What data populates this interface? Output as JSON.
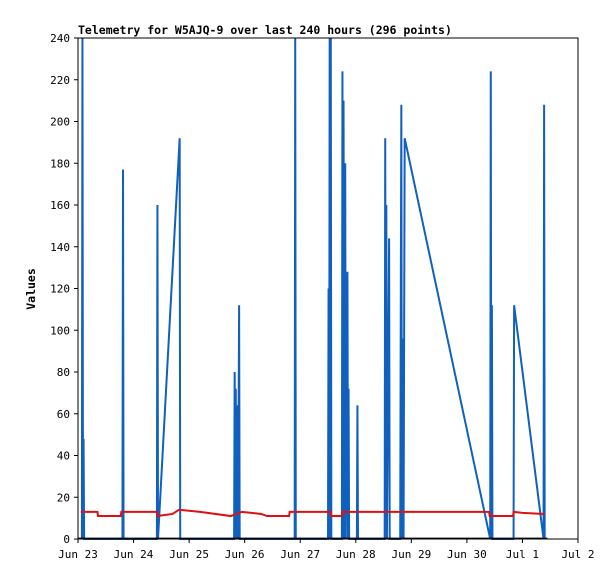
{
  "chart_data": {
    "type": "line",
    "title": "Telemetry for W5AJQ-9 over last 240 hours (296 points)",
    "xlabel": "",
    "ylabel": "Values",
    "x_ticks": [
      "Jun 23",
      "Jun 24",
      "Jun 25",
      "Jun 26",
      "Jun 27",
      "Jun 28",
      "Jun 29",
      "Jun 30",
      "Jul 1",
      "Jul 2"
    ],
    "xlim_days": [
      0,
      9
    ],
    "y_ticks": [
      0,
      20,
      40,
      60,
      80,
      100,
      120,
      140,
      160,
      180,
      200,
      220,
      240
    ],
    "ylim": [
      0,
      240
    ],
    "grid": false,
    "series": [
      {
        "color": "#1060c0",
        "points": [
          [
            0.07,
            0
          ],
          [
            0.08,
            240
          ],
          [
            0.09,
            0
          ],
          [
            0.1,
            48
          ],
          [
            0.11,
            0
          ],
          [
            0.8,
            0
          ],
          [
            0.81,
            177
          ],
          [
            0.82,
            0
          ],
          [
            1.42,
            0
          ],
          [
            1.43,
            160
          ],
          [
            1.44,
            0
          ],
          [
            1.83,
            192
          ],
          [
            1.84,
            0
          ],
          [
            2.81,
            0
          ],
          [
            2.82,
            80
          ],
          [
            2.83,
            0
          ],
          [
            2.84,
            72
          ],
          [
            2.85,
            0
          ],
          [
            2.87,
            64
          ],
          [
            2.88,
            0
          ],
          [
            2.9,
            112
          ],
          [
            2.91,
            0
          ],
          [
            3.9,
            0
          ],
          [
            3.91,
            240
          ],
          [
            3.92,
            0
          ],
          [
            4.5,
            0
          ],
          [
            4.51,
            120
          ],
          [
            4.52,
            0
          ],
          [
            4.53,
            240
          ],
          [
            4.54,
            0
          ],
          [
            4.55,
            240
          ],
          [
            4.56,
            0
          ],
          [
            4.75,
            0
          ],
          [
            4.76,
            224
          ],
          [
            4.77,
            0
          ],
          [
            4.78,
            210
          ],
          [
            4.79,
            0
          ],
          [
            4.81,
            180
          ],
          [
            4.82,
            0
          ],
          [
            4.85,
            128
          ],
          [
            4.86,
            0
          ],
          [
            4.87,
            72
          ],
          [
            4.88,
            0
          ],
          [
            5.02,
            0
          ],
          [
            5.03,
            64
          ],
          [
            5.04,
            0
          ],
          [
            5.52,
            0
          ],
          [
            5.53,
            192
          ],
          [
            5.54,
            0
          ],
          [
            5.55,
            160
          ],
          [
            5.56,
            0
          ],
          [
            5.6,
            144
          ],
          [
            5.61,
            0
          ],
          [
            5.8,
            0
          ],
          [
            5.81,
            112
          ],
          [
            5.82,
            208
          ],
          [
            5.83,
            0
          ],
          [
            5.85,
            96
          ],
          [
            5.86,
            0
          ],
          [
            5.88,
            192
          ],
          [
            7.42,
            0
          ],
          [
            7.43,
            224
          ],
          [
            7.44,
            0
          ],
          [
            7.45,
            112
          ],
          [
            7.46,
            0
          ],
          [
            7.84,
            0
          ],
          [
            7.85,
            112
          ],
          [
            8.38,
            0
          ],
          [
            8.39,
            208
          ],
          [
            8.4,
            0
          ]
        ]
      },
      {
        "color": "#e01010",
        "points": [
          [
            0.05,
            13
          ],
          [
            0.35,
            13
          ],
          [
            0.36,
            11
          ],
          [
            0.77,
            11
          ],
          [
            0.78,
            13
          ],
          [
            1.42,
            13
          ],
          [
            1.43,
            11
          ],
          [
            1.7,
            12
          ],
          [
            1.82,
            14
          ],
          [
            2.2,
            13
          ],
          [
            2.75,
            11
          ],
          [
            2.95,
            13
          ],
          [
            3.3,
            12
          ],
          [
            3.4,
            11
          ],
          [
            3.8,
            11
          ],
          [
            3.81,
            13
          ],
          [
            4.55,
            13
          ],
          [
            4.56,
            11
          ],
          [
            4.75,
            11
          ],
          [
            4.76,
            13
          ],
          [
            7.4,
            13
          ],
          [
            7.41,
            11
          ],
          [
            7.83,
            11
          ],
          [
            7.84,
            13
          ],
          [
            8.0,
            12.5
          ],
          [
            8.4,
            12
          ]
        ]
      },
      {
        "color": "#000000",
        "points": [
          [
            0.0,
            0.3
          ],
          [
            8.45,
            0.3
          ]
        ]
      }
    ]
  }
}
